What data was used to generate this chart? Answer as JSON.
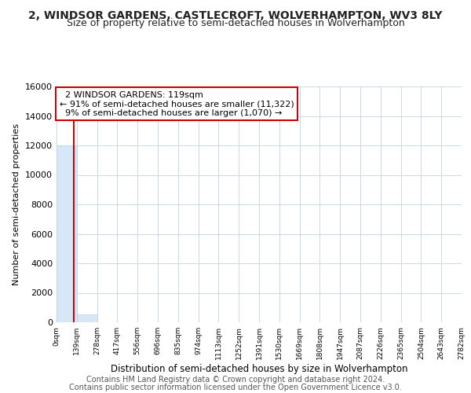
{
  "title1": "2, WINDSOR GARDENS, CASTLECROFT, WOLVERHAMPTON, WV3 8LY",
  "title2": "Size of property relative to semi-detached houses in Wolverhampton",
  "xlabel": "Distribution of semi-detached houses by size in Wolverhampton",
  "ylabel": "Number of semi-detached properties",
  "footnote1": "Contains HM Land Registry data © Crown copyright and database right 2024.",
  "footnote2": "Contains public sector information licensed under the Open Government Licence v3.0.",
  "bar_edges": [
    0,
    139,
    278,
    417,
    556,
    696,
    835,
    974,
    1113,
    1252,
    1391,
    1530,
    1669,
    1808,
    1947,
    2087,
    2226,
    2365,
    2504,
    2643,
    2782
  ],
  "bar_heights": [
    12000,
    550,
    15,
    4,
    2,
    1,
    0,
    0,
    0,
    0,
    0,
    0,
    0,
    0,
    0,
    0,
    0,
    0,
    0,
    0
  ],
  "bar_color": "#d6e8f7",
  "bar_edgecolor": "#b8d3ea",
  "property_size": 119,
  "property_label": "2 WINDSOR GARDENS: 119sqm",
  "pct_smaller": 91,
  "n_smaller": "11,322",
  "pct_larger": 9,
  "n_larger": "1,070",
  "redline_color": "#cc0000",
  "annotation_box_edgecolor": "#cc0000",
  "ylim": [
    0,
    16000
  ],
  "yticks": [
    0,
    2000,
    4000,
    6000,
    8000,
    10000,
    12000,
    14000,
    16000
  ],
  "tick_labels": [
    "0sqm",
    "139sqm",
    "278sqm",
    "417sqm",
    "556sqm",
    "696sqm",
    "835sqm",
    "974sqm",
    "1113sqm",
    "1252sqm",
    "1391sqm",
    "1530sqm",
    "1669sqm",
    "1808sqm",
    "1947sqm",
    "2087sqm",
    "2226sqm",
    "2365sqm",
    "2504sqm",
    "2643sqm",
    "2782sqm"
  ],
  "title1_fontsize": 10,
  "title2_fontsize": 9,
  "xlabel_fontsize": 8.5,
  "ylabel_fontsize": 8,
  "footnote_fontsize": 7,
  "annotation_fontsize": 8,
  "background_color": "#ffffff",
  "grid_color": "#c8d8e8"
}
